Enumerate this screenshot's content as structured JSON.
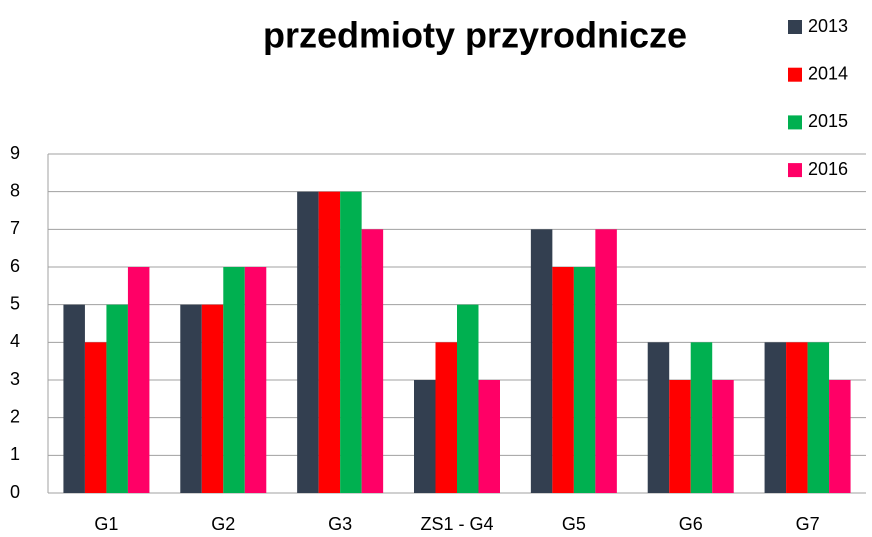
{
  "chart_data": {
    "type": "bar",
    "title": "przedmioty przyrodnicze",
    "categories": [
      "G1",
      "G2",
      "G3",
      "ZS1 - G4",
      "G5",
      "G6",
      "G7"
    ],
    "series": [
      {
        "name": "2013",
        "color": "#333f50",
        "values": [
          5,
          5,
          8,
          3,
          7,
          4,
          4
        ]
      },
      {
        "name": "2014",
        "color": "#ff0000",
        "values": [
          4,
          5,
          8,
          4,
          6,
          3,
          4
        ]
      },
      {
        "name": "2015",
        "color": "#00b050",
        "values": [
          5,
          6,
          8,
          5,
          6,
          4,
          4
        ]
      },
      {
        "name": "2016",
        "color": "#ff0066",
        "values": [
          6,
          6,
          7,
          3,
          7,
          3,
          3
        ]
      }
    ],
    "ylim": [
      0,
      9
    ],
    "yticks": [
      0,
      1,
      2,
      3,
      4,
      5,
      6,
      7,
      8,
      9
    ],
    "grid": true,
    "legend": "top-right"
  }
}
